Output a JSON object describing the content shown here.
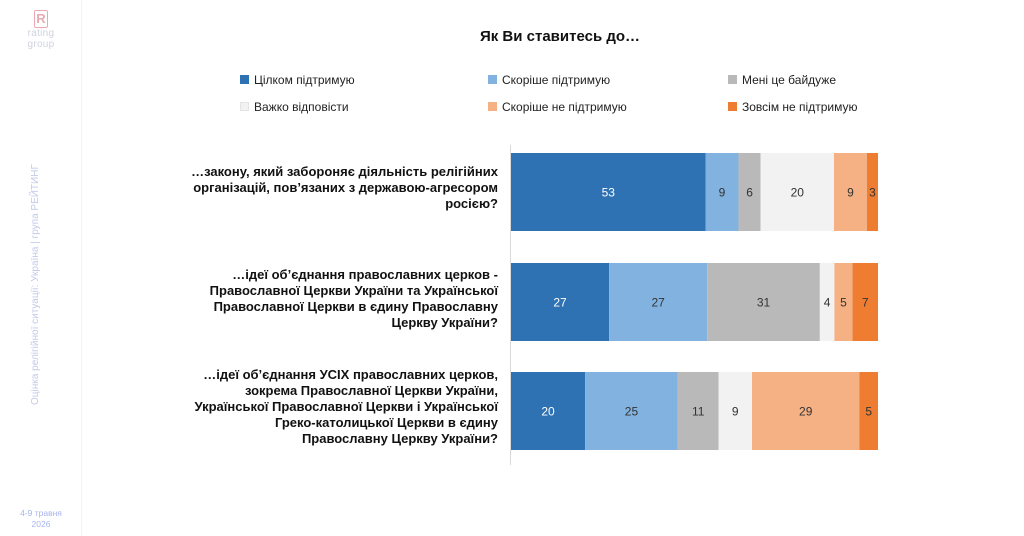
{
  "brand": {
    "logo_letter": "R",
    "logo_line1": "rating",
    "logo_line2": "group"
  },
  "sidebar": {
    "vertical_text": "Оцінка релігійної ситуації: Україна | група РЕЙТИНГ",
    "date_line1": "4-9 травня",
    "date_line2": "2026"
  },
  "colors": {
    "full_support": "#2e72b3",
    "rather_support": "#82b3e0",
    "indifferent": "#b9b9b9",
    "hard_to_say": "#f2f2f2",
    "rather_not_support": "#f5b084",
    "not_support": "#ee7c31"
  },
  "chart_data": {
    "type": "bar",
    "orientation": "horizontal",
    "stacked": true,
    "title": "Як Ви ставитесь до…",
    "xlim": [
      0,
      100
    ],
    "grid": false,
    "legend_position": "top",
    "categories": [
      "…закону, який забороняє діяльність релігійних організацій, пов’язаних з державою-агресором росією?",
      "…ідеї об’єднання православних церков - Православної Церкви України та Української Православної Церкви в єдину Православну Церкву України?",
      "…ідеї об’єднання УСІХ православних церков, зокрема Православної Церкви України, Української Православної Церкви і Української Греко-католицької Церкви в єдину Православну Церкву України?"
    ],
    "category_lines": [
      [
        "…закону, який забороняє діяльність релігійних",
        "організацій, пов’язаних з державою-агресором",
        "росією?"
      ],
      [
        "…ідеї об’єднання православних церков -",
        "Православної Церкви України та Української",
        "Православної Церкви в єдину Православну",
        "Церкву України?"
      ],
      [
        "…ідеї об’єднання УСІХ православних церков,",
        "зокрема Православної Церкви України,",
        "Української Православної Церкви і Української",
        "Греко-католицької Церкви в єдину",
        "Православну Церкву України?"
      ]
    ],
    "series": [
      {
        "name": "Цілком підтримую",
        "color": "#2e72b3",
        "label_color": "#ffffff",
        "values": [
          53,
          27,
          20
        ]
      },
      {
        "name": "Скоріше підтримую",
        "color": "#82b3e0",
        "label_color": "#333333",
        "values": [
          9,
          27,
          25
        ]
      },
      {
        "name": "Мені це байдуже",
        "color": "#b9b9b9",
        "label_color": "#333333",
        "values": [
          6,
          31,
          11
        ]
      },
      {
        "name": "Важко відповісти",
        "color": "#f2f2f2",
        "label_color": "#333333",
        "values": [
          20,
          4,
          9
        ]
      },
      {
        "name": "Скоріше не підтримую",
        "color": "#f5b084",
        "label_color": "#333333",
        "values": [
          9,
          5,
          29
        ]
      },
      {
        "name": "Зовсім не підтримую",
        "color": "#ee7c31",
        "label_color": "#333333",
        "values": [
          3,
          7,
          5
        ]
      }
    ]
  }
}
